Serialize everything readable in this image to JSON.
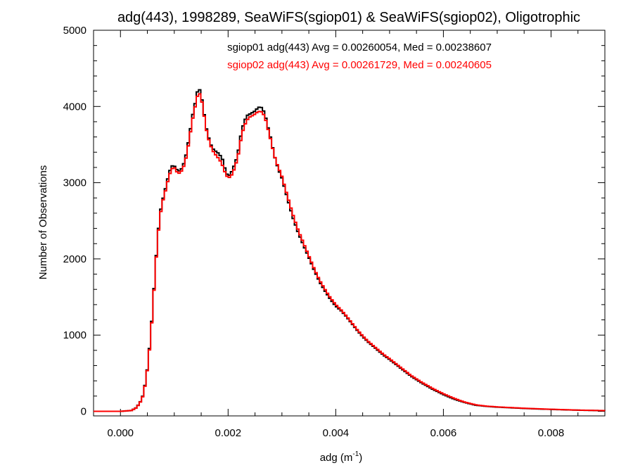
{
  "chart_data": {
    "type": "line",
    "title": "adg(443), 1998289, SeaWiFS(sgiop01) & SeaWiFS(sgiop02), Oligotrophic",
    "xlabel_main": "adg (m",
    "xlabel_sup": "-1",
    "xlabel_close": ")",
    "ylabel": "Number of Observations",
    "xlim": [
      -0.0005,
      0.009
    ],
    "ylim": [
      -60,
      5000
    ],
    "x_ticks": [
      0.0,
      0.002,
      0.004,
      0.006,
      0.008
    ],
    "x_tick_labels": [
      "0.000",
      "0.002",
      "0.004",
      "0.006",
      "0.008"
    ],
    "y_ticks": [
      0,
      1000,
      2000,
      3000,
      4000,
      5000
    ],
    "y_tick_labels": [
      "0",
      "1000",
      "2000",
      "3000",
      "4000",
      "5000"
    ],
    "bin_width": 4.24e-05,
    "grid": false,
    "legend_position": "top-center",
    "series": [
      {
        "name": "sgiop01 adg(443) Avg = 0.00260054, Med = 0.00238607",
        "color": "#000000",
        "x": [
          -0.0005,
          0.0,
          0.0002,
          0.0003,
          0.0004,
          0.00045,
          0.0005,
          0.00055,
          0.0006,
          0.00065,
          0.0007,
          0.00075,
          0.0008,
          0.00085,
          0.0009,
          0.00095,
          0.001,
          0.00105,
          0.0011,
          0.00115,
          0.0012,
          0.00125,
          0.0013,
          0.00135,
          0.0014,
          0.00145,
          0.0015,
          0.00155,
          0.0016,
          0.00165,
          0.0017,
          0.00175,
          0.0018,
          0.00185,
          0.0019,
          0.00195,
          0.002,
          0.00205,
          0.0021,
          0.00215,
          0.0022,
          0.00225,
          0.0023,
          0.00235,
          0.0024,
          0.00245,
          0.0025,
          0.00255,
          0.0026,
          0.00265,
          0.0027,
          0.00275,
          0.0028,
          0.00285,
          0.0029,
          0.00295,
          0.003,
          0.0031,
          0.0032,
          0.0033,
          0.0034,
          0.0035,
          0.0036,
          0.0037,
          0.0038,
          0.0039,
          0.004,
          0.0041,
          0.0042,
          0.0043,
          0.0044,
          0.0045,
          0.0046,
          0.0047,
          0.0048,
          0.0049,
          0.005,
          0.0052,
          0.0054,
          0.0056,
          0.0058,
          0.006,
          0.0062,
          0.0064,
          0.0066,
          0.0068,
          0.007,
          0.0075,
          0.008,
          0.0085,
          0.009
        ],
        "y": [
          0,
          0,
          10,
          50,
          160,
          320,
          560,
          900,
          1350,
          1900,
          2350,
          2650,
          2820,
          2960,
          3120,
          3220,
          3220,
          3170,
          3150,
          3200,
          3300,
          3480,
          3700,
          3920,
          4080,
          4270,
          4150,
          3920,
          3700,
          3560,
          3460,
          3420,
          3400,
          3360,
          3300,
          3160,
          3080,
          3120,
          3200,
          3300,
          3450,
          3680,
          3800,
          3880,
          3900,
          3920,
          3940,
          3980,
          4000,
          3960,
          3850,
          3700,
          3560,
          3380,
          3250,
          3150,
          3060,
          2800,
          2550,
          2350,
          2180,
          2020,
          1850,
          1700,
          1580,
          1470,
          1380,
          1320,
          1240,
          1150,
          1060,
          980,
          910,
          850,
          790,
          730,
          680,
          570,
          460,
          370,
          290,
          220,
          160,
          115,
          80,
          65,
          55,
          38,
          25,
          15,
          8
        ]
      },
      {
        "name": "sgiop02 adg(443) Avg = 0.00261729, Med = 0.00240605",
        "color": "#ff0000",
        "x": [
          -0.0005,
          0.0,
          0.0002,
          0.0003,
          0.0004,
          0.00045,
          0.0005,
          0.00055,
          0.0006,
          0.00065,
          0.0007,
          0.00075,
          0.0008,
          0.00085,
          0.0009,
          0.00095,
          0.001,
          0.00105,
          0.0011,
          0.00115,
          0.0012,
          0.00125,
          0.0013,
          0.00135,
          0.0014,
          0.00145,
          0.0015,
          0.00155,
          0.0016,
          0.00165,
          0.0017,
          0.00175,
          0.0018,
          0.00185,
          0.0019,
          0.00195,
          0.002,
          0.00205,
          0.0021,
          0.00215,
          0.0022,
          0.00225,
          0.0023,
          0.00235,
          0.0024,
          0.00245,
          0.0025,
          0.00255,
          0.0026,
          0.00265,
          0.0027,
          0.00275,
          0.0028,
          0.00285,
          0.0029,
          0.00295,
          0.003,
          0.0031,
          0.0032,
          0.0033,
          0.0034,
          0.0035,
          0.0036,
          0.0037,
          0.0038,
          0.0039,
          0.004,
          0.0041,
          0.0042,
          0.0043,
          0.0044,
          0.0045,
          0.0046,
          0.0047,
          0.0048,
          0.0049,
          0.005,
          0.0052,
          0.0054,
          0.0056,
          0.0058,
          0.006,
          0.0062,
          0.0064,
          0.0066,
          0.0068,
          0.007,
          0.0075,
          0.008,
          0.0085,
          0.009
        ],
        "y": [
          0,
          0,
          10,
          48,
          155,
          310,
          550,
          880,
          1330,
          1880,
          2330,
          2620,
          2800,
          2930,
          3080,
          3180,
          3200,
          3140,
          3120,
          3170,
          3260,
          3440,
          3660,
          3870,
          4040,
          4200,
          4120,
          3900,
          3680,
          3540,
          3440,
          3380,
          3340,
          3290,
          3220,
          3120,
          3060,
          3080,
          3150,
          3260,
          3400,
          3620,
          3740,
          3820,
          3860,
          3880,
          3900,
          3930,
          3940,
          3910,
          3820,
          3680,
          3540,
          3380,
          3260,
          3170,
          3080,
          2830,
          2590,
          2380,
          2210,
          2040,
          1870,
          1720,
          1600,
          1490,
          1400,
          1330,
          1250,
          1160,
          1070,
          990,
          920,
          860,
          800,
          740,
          690,
          580,
          470,
          380,
          300,
          230,
          170,
          120,
          85,
          68,
          58,
          40,
          27,
          16,
          9
        ]
      }
    ]
  }
}
